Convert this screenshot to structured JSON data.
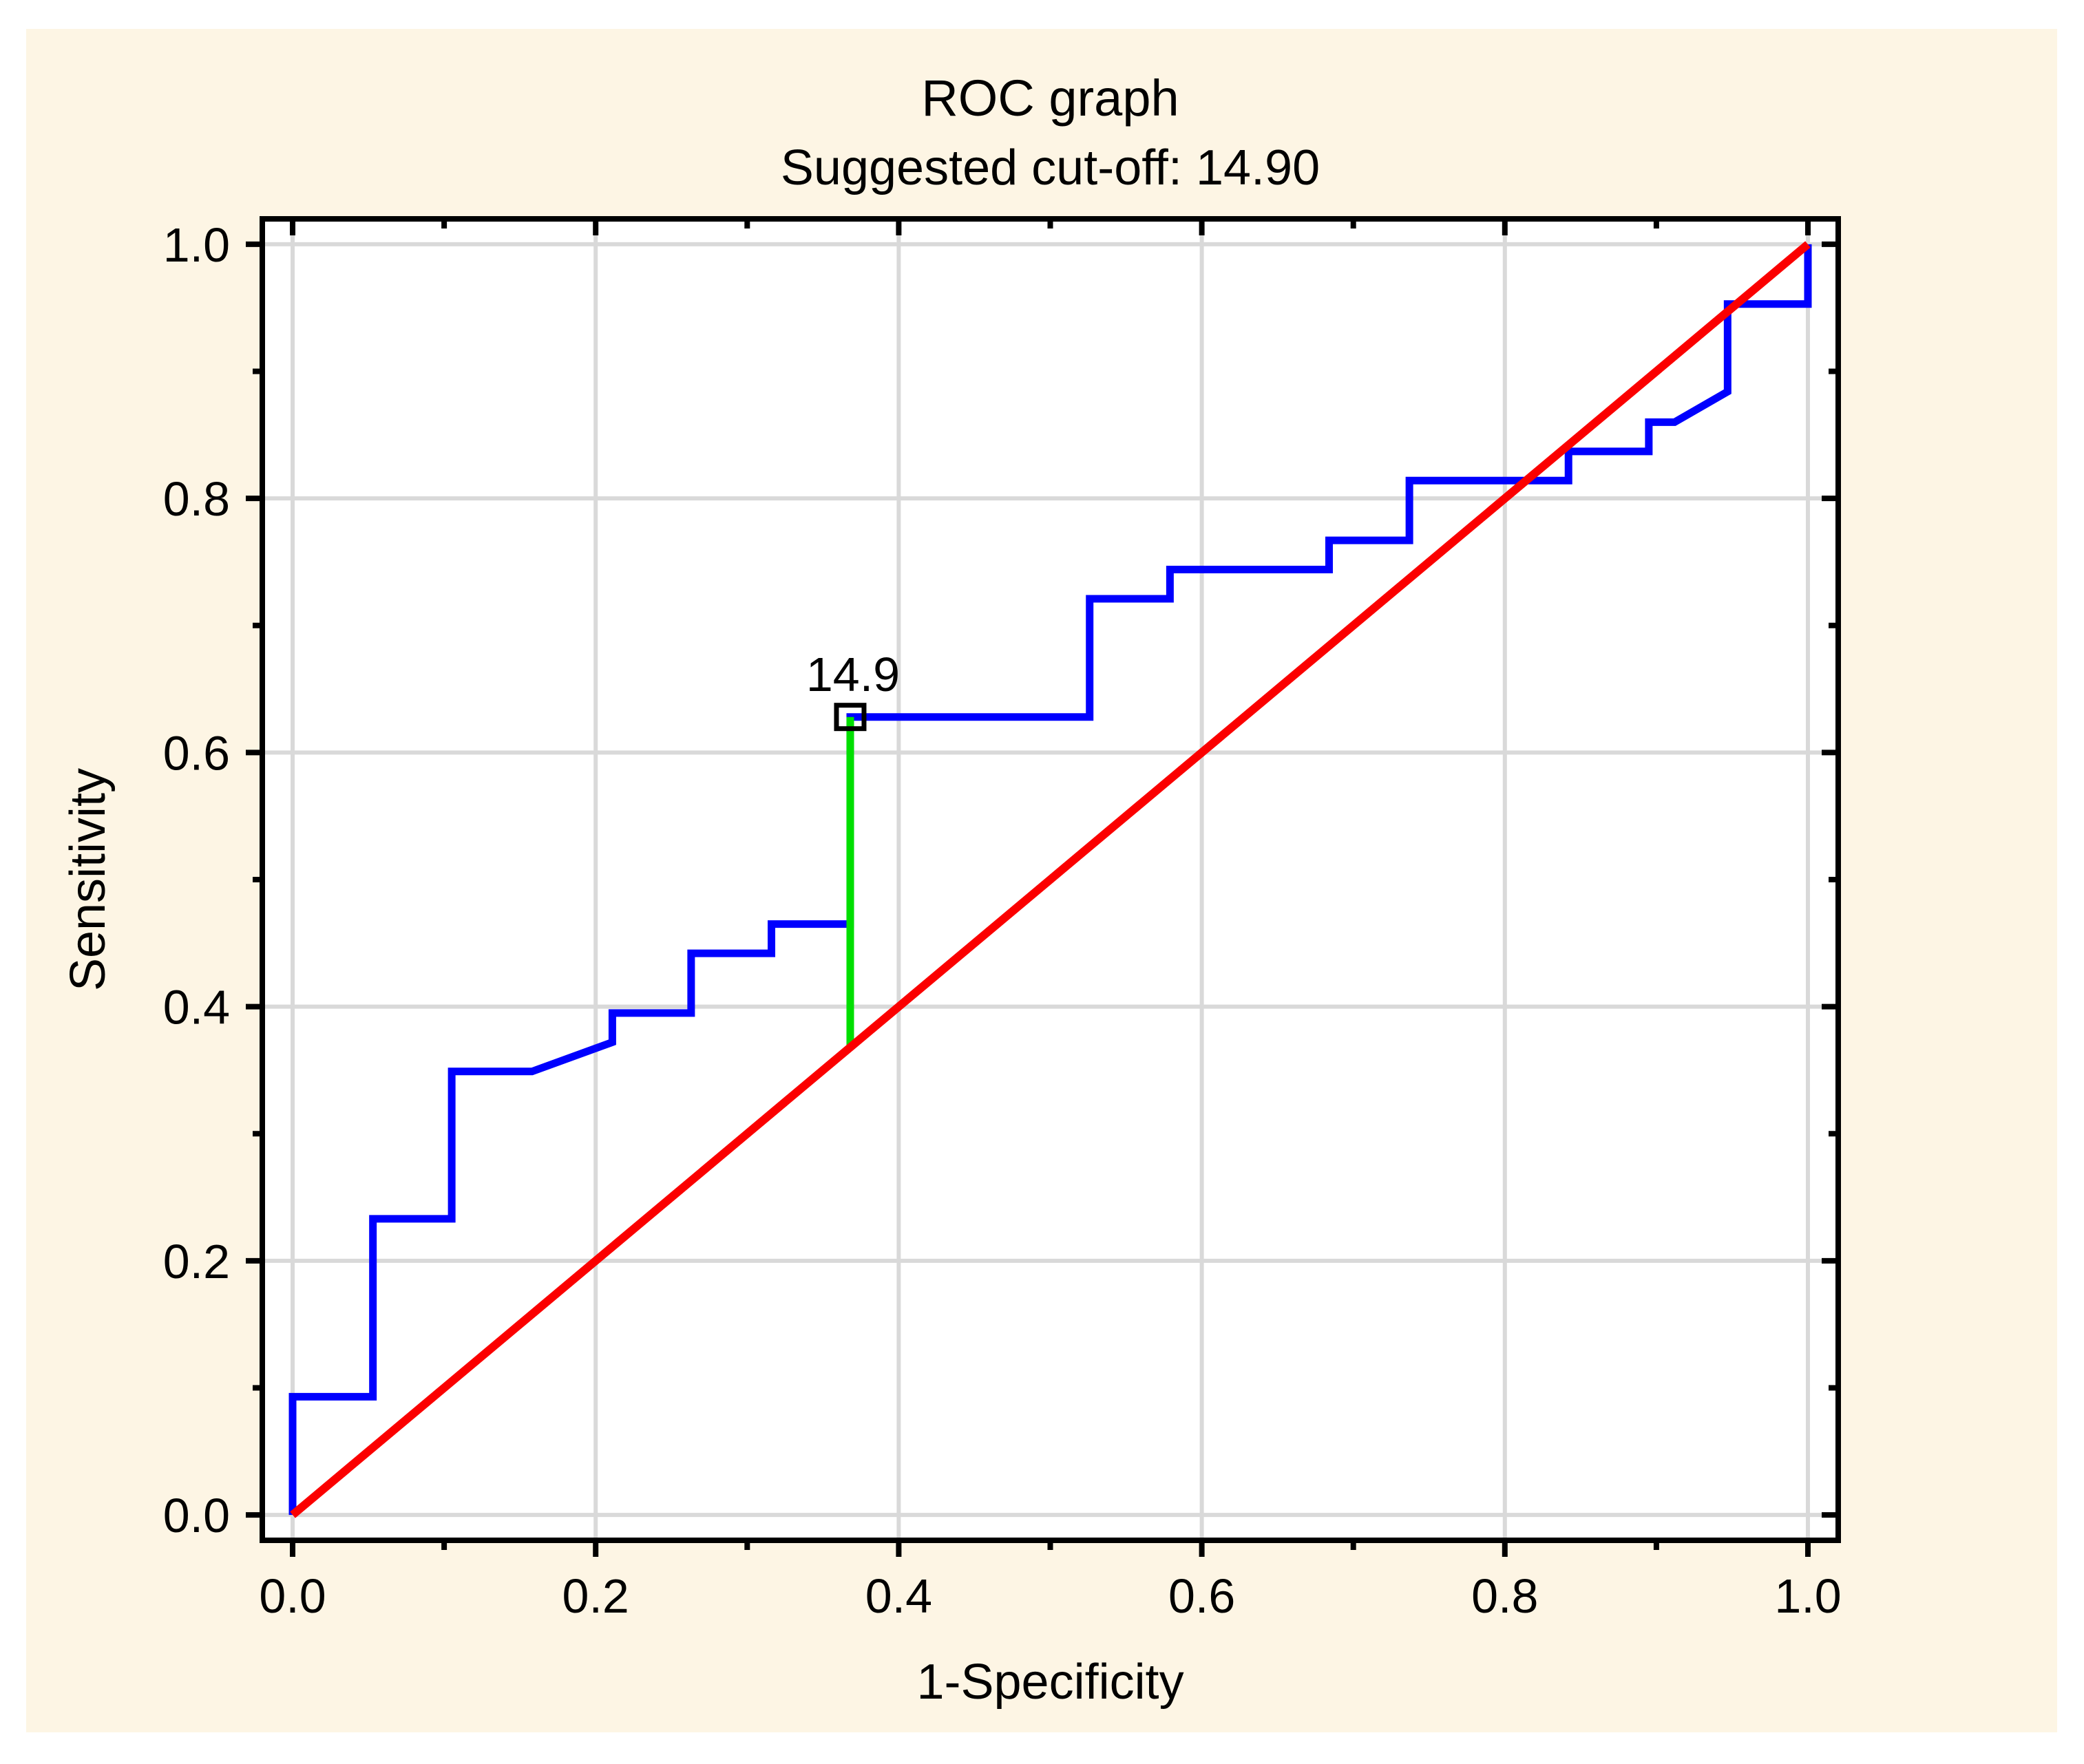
{
  "chart_data": {
    "type": "line",
    "title": "ROC graph",
    "subtitle": "Suggested cut-off: 14.90",
    "xlabel": "1-Specificity",
    "ylabel": "Sensitivity",
    "xlim": [
      -0.02,
      1.02
    ],
    "ylim": [
      -0.02,
      1.02
    ],
    "grid": true,
    "x_ticks": {
      "values": [
        0.0,
        0.2,
        0.4,
        0.6,
        0.8,
        1.0
      ],
      "labels": [
        "0.0",
        "0.2",
        "0.4",
        "0.6",
        "0.8",
        "1.0"
      ],
      "minor_values": [
        0.1,
        0.3,
        0.5,
        0.7,
        0.9
      ]
    },
    "y_ticks": {
      "values": [
        0.0,
        0.2,
        0.4,
        0.6,
        0.8,
        1.0
      ],
      "labels": [
        "0.0",
        "0.2",
        "0.4",
        "0.6",
        "0.8",
        "1.0"
      ],
      "minor_values": [
        0.1,
        0.3,
        0.5,
        0.7,
        0.9
      ]
    },
    "series": [
      {
        "name": "roc-curve",
        "color": "#0000FE",
        "width": 11,
        "points": [
          [
            0.0,
            0.0
          ],
          [
            0.0,
            0.093
          ],
          [
            0.053,
            0.093
          ],
          [
            0.053,
            0.233
          ],
          [
            0.105,
            0.233
          ],
          [
            0.105,
            0.349
          ],
          [
            0.158,
            0.349
          ],
          [
            0.211,
            0.372
          ],
          [
            0.211,
            0.395
          ],
          [
            0.263,
            0.395
          ],
          [
            0.263,
            0.442
          ],
          [
            0.316,
            0.442
          ],
          [
            0.316,
            0.465
          ],
          [
            0.368,
            0.465
          ],
          [
            0.368,
            0.628
          ],
          [
            0.526,
            0.628
          ],
          [
            0.526,
            0.721
          ],
          [
            0.579,
            0.721
          ],
          [
            0.579,
            0.744
          ],
          [
            0.684,
            0.744
          ],
          [
            0.684,
            0.767
          ],
          [
            0.737,
            0.767
          ],
          [
            0.737,
            0.814
          ],
          [
            0.842,
            0.814
          ],
          [
            0.842,
            0.837
          ],
          [
            0.895,
            0.837
          ],
          [
            0.895,
            0.86
          ],
          [
            0.912,
            0.86
          ],
          [
            0.947,
            0.884
          ],
          [
            0.947,
            0.953
          ],
          [
            1.0,
            0.953
          ],
          [
            1.0,
            1.0
          ]
        ]
      },
      {
        "name": "cutoff-line",
        "color": "#00DF00",
        "width": 11,
        "points": [
          [
            0.368,
            0.368
          ],
          [
            0.368,
            0.628
          ]
        ]
      },
      {
        "name": "chance-diagonal",
        "color": "#FB0000",
        "width": 12,
        "points": [
          [
            0.0,
            0.0
          ],
          [
            1.0,
            1.0
          ]
        ]
      }
    ],
    "cutoff_marker": {
      "x": 0.368,
      "y": 0.628,
      "label": "14.9"
    },
    "colors": {
      "page_bg": "#FFFFFF",
      "panel_bg": "#FDF5E4",
      "plot_bg": "#FFFFFF",
      "grid": "#D9D9D9",
      "frame": "#000000",
      "text": "#000000",
      "marker": "#000000"
    }
  }
}
